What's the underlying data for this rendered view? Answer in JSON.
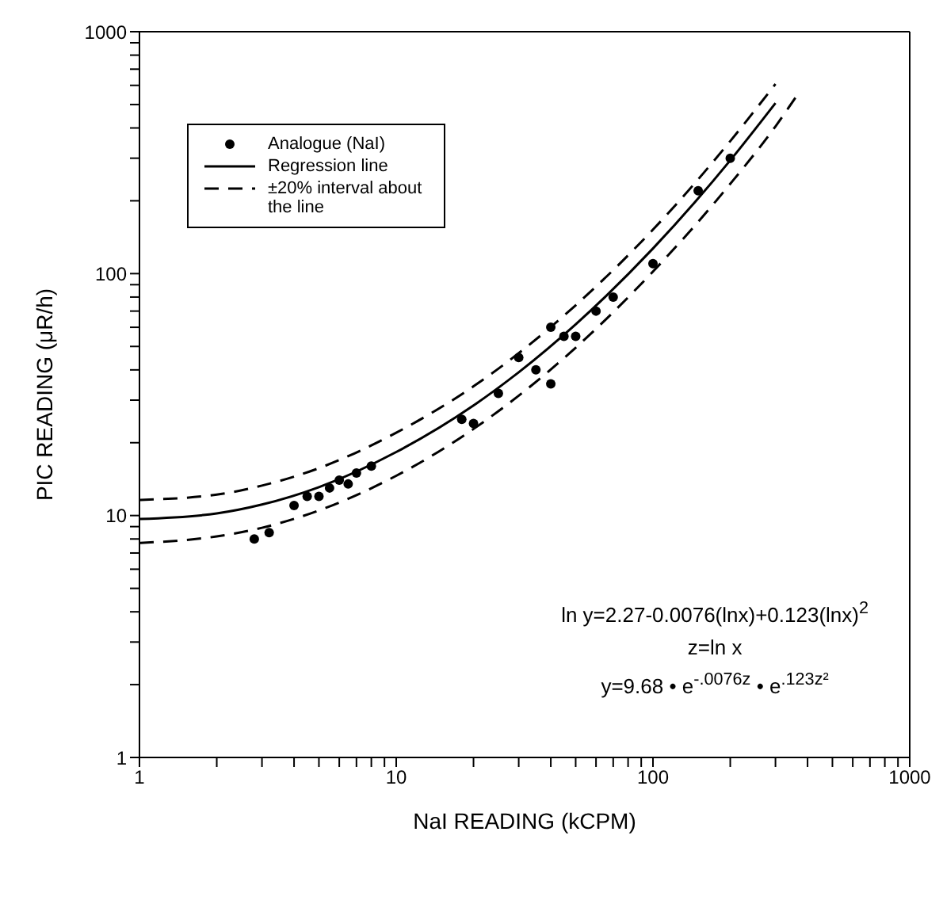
{
  "chart_data": {
    "type": "line",
    "xlabel": "NaI READING (kCPM)",
    "ylabel": "PIC READING (μR/h)",
    "log": "xy",
    "xlim": [
      1,
      1000
    ],
    "ylim": [
      1,
      1000
    ],
    "xticks": [
      1,
      {
        "value": 2,
        "label": null
      },
      {
        "value": 3,
        "label": null
      },
      {
        "value": 4,
        "label": null
      },
      {
        "value": 5,
        "label": null
      },
      {
        "value": 6,
        "label": null
      },
      {
        "value": 7,
        "label": null
      },
      {
        "value": 8,
        "label": null
      },
      {
        "value": 9,
        "label": null
      },
      10,
      {
        "value": 20,
        "label": null
      },
      {
        "value": 30,
        "label": null
      },
      {
        "value": 40,
        "label": null
      },
      {
        "value": 50,
        "label": null
      },
      {
        "value": 60,
        "label": null
      },
      {
        "value": 70,
        "label": null
      },
      {
        "value": 80,
        "label": null
      },
      {
        "value": 90,
        "label": null
      },
      100,
      {
        "value": 200,
        "label": null
      },
      {
        "value": 300,
        "label": null
      },
      {
        "value": 400,
        "label": null
      },
      {
        "value": 500,
        "label": null
      },
      {
        "value": 600,
        "label": null
      },
      {
        "value": 700,
        "label": null
      },
      {
        "value": 800,
        "label": null
      },
      {
        "value": 900,
        "label": null
      },
      1000
    ],
    "yticks": [
      1,
      {
        "value": 2,
        "label": null
      },
      {
        "value": 3,
        "label": null
      },
      {
        "value": 4,
        "label": null
      },
      {
        "value": 5,
        "label": null
      },
      {
        "value": 6,
        "label": null
      },
      {
        "value": 7,
        "label": null
      },
      {
        "value": 8,
        "label": null
      },
      {
        "value": 9,
        "label": null
      },
      10,
      {
        "value": 20,
        "label": null
      },
      {
        "value": 30,
        "label": null
      },
      {
        "value": 40,
        "label": null
      },
      {
        "value": 50,
        "label": null
      },
      {
        "value": 60,
        "label": null
      },
      {
        "value": 70,
        "label": null
      },
      {
        "value": 80,
        "label": null
      },
      {
        "value": 90,
        "label": null
      },
      100,
      {
        "value": 200,
        "label": null
      },
      {
        "value": 300,
        "label": null
      },
      {
        "value": 400,
        "label": null
      },
      {
        "value": 500,
        "label": null
      },
      {
        "value": 600,
        "label": null
      },
      {
        "value": 700,
        "label": null
      },
      {
        "value": 800,
        "label": null
      },
      {
        "value": 900,
        "label": null
      },
      1000
    ],
    "legend": "top left",
    "series": [
      {
        "name": "Analogue (NaI)",
        "type": "scatter",
        "marker": "circle",
        "color": "#000000",
        "x": [
          2.8,
          3.2,
          4,
          4.5,
          5,
          5.5,
          6,
          6.5,
          7,
          8,
          18,
          20,
          25,
          30,
          35,
          40,
          40,
          45,
          50,
          60,
          70,
          100,
          150,
          200
        ],
        "values": [
          8,
          8.5,
          11,
          12,
          12,
          13,
          14,
          13.5,
          15,
          16,
          25,
          24,
          32,
          45,
          40,
          35,
          60,
          55,
          55,
          70,
          80,
          110,
          220,
          300
        ]
      },
      {
        "name": "Regression line",
        "line_style": "solid",
        "color": "#000000",
        "x": [
          1,
          2,
          3,
          5,
          10,
          20,
          30,
          50,
          100,
          200,
          300
        ],
        "values": [
          9.68,
          10.2,
          11.1,
          13.1,
          18.3,
          28.5,
          39.1,
          61.7,
          127,
          294,
          507
        ]
      },
      {
        "name": "±20% interval about the line",
        "line_style": "dashed",
        "color": "#000000",
        "x": [
          1,
          2,
          3,
          5,
          10,
          20,
          30,
          50,
          100,
          200,
          300
        ],
        "values": [
          11.6,
          12.2,
          13.3,
          15.7,
          22,
          34.2,
          46.9,
          74,
          152,
          353,
          608
        ]
      },
      {
        "line_style": "dashed",
        "color": "#000000",
        "x": [
          1,
          2,
          3,
          5,
          10,
          20,
          30,
          50,
          100,
          200,
          300,
          370
        ],
        "values": [
          7.7,
          8.2,
          8.9,
          10.5,
          14.6,
          22.8,
          31.3,
          49.4,
          102,
          235,
          406,
          560
        ]
      }
    ],
    "annotations": [
      "ln y=2.27-0.0076(lnx)+0.123(lnx)$^{2}$",
      "z=ln x",
      "y=9.68 • e$^{-.0076z}$ • e$^{.123z²}$"
    ]
  }
}
